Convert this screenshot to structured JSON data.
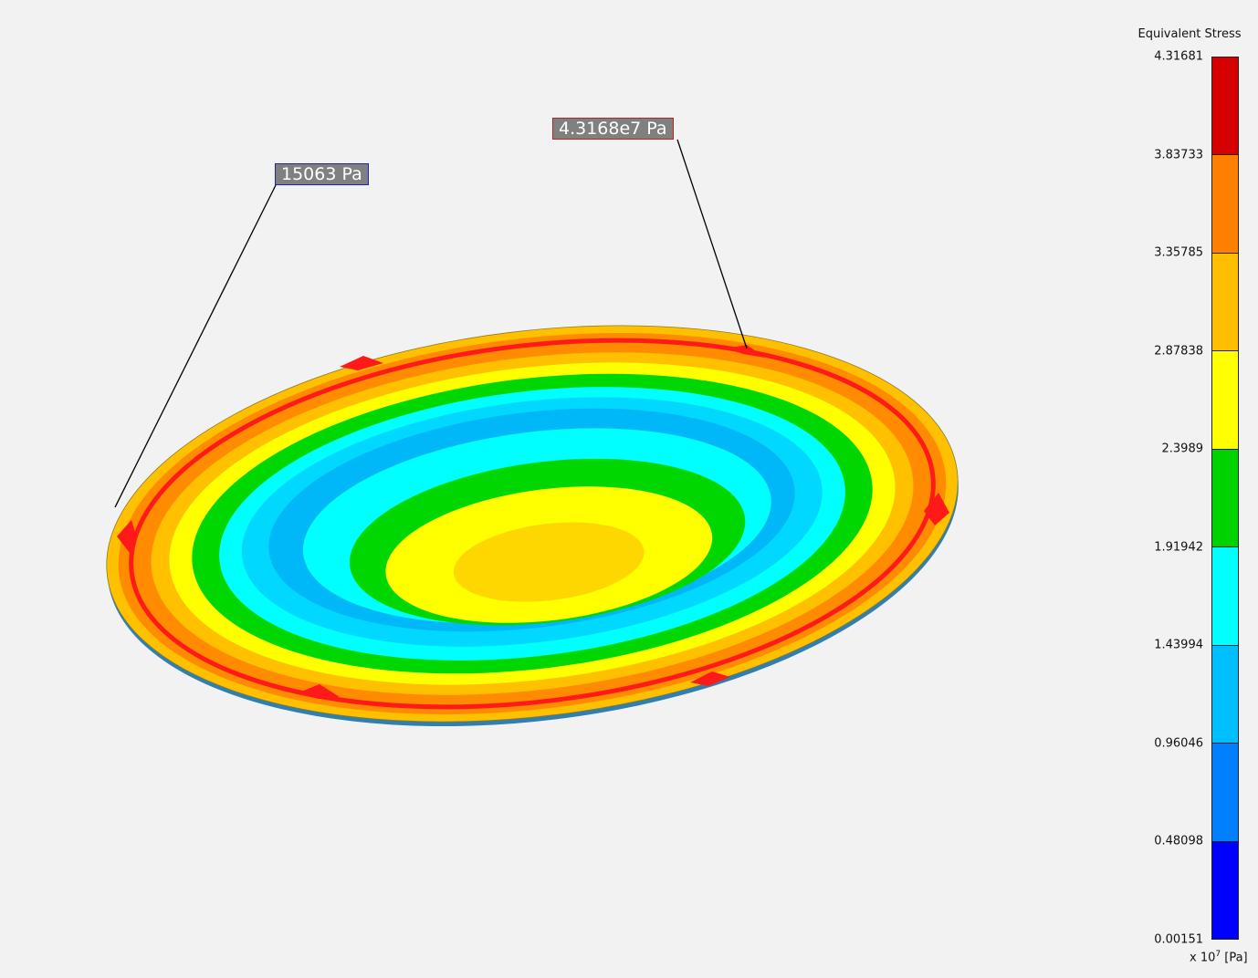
{
  "probes": {
    "min_label": "15063 Pa",
    "max_label": "4.3168e7 Pa"
  },
  "legend": {
    "title": "Equivalent Stress",
    "ticks": [
      "4.31681",
      "3.83733",
      "3.35785",
      "2.87838",
      "2.3989",
      "1.91942",
      "1.43994",
      "0.96046",
      "0.48098",
      "0.00151"
    ],
    "unit_prefix": "x 10",
    "unit_exponent": "7",
    "unit_suffix": " [Pa]",
    "colors": [
      "#d70000",
      "#ff8000",
      "#ffbf00",
      "#ffff00",
      "#00d200",
      "#00ffff",
      "#00bfff",
      "#0080ff",
      "#0000ff"
    ]
  },
  "contour_colors": {
    "red": "#ff1a1a",
    "orange": "#ff8c00",
    "amber": "#ffc000",
    "yellow": "#ffff00",
    "green": "#00d700",
    "cyan": "#00ffff",
    "light_blue": "#00d8ff",
    "blue": "#00b8f8",
    "gold": "#ffd700",
    "rim": "#2f7fb0"
  }
}
